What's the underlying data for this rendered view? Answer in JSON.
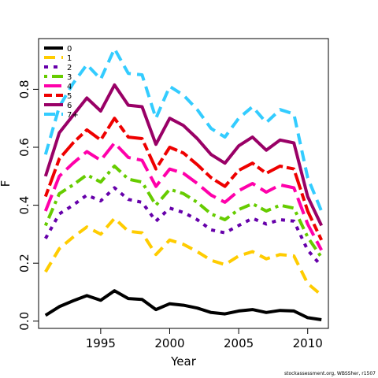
{
  "chart_data": {
    "type": "line",
    "title": "",
    "xlabel": "Year",
    "ylabel": "F",
    "xlim": [
      1990.5,
      2011.5
    ],
    "ylim": [
      -0.025,
      0.975
    ],
    "xticks": [
      1995,
      2000,
      2005,
      2010
    ],
    "yticks": [
      0.0,
      0.2,
      0.4,
      0.6,
      0.8
    ],
    "x": [
      1991,
      1992,
      1993,
      1994,
      1995,
      1996,
      1997,
      1998,
      1999,
      2000,
      2001,
      2002,
      2003,
      2004,
      2005,
      2006,
      2007,
      2008,
      2009,
      2010,
      2011
    ],
    "legend_position": "top-left",
    "series": [
      {
        "name": "0",
        "color": "#000000",
        "dash": "solid",
        "values": [
          0.02,
          0.05,
          0.07,
          0.088,
          0.072,
          0.105,
          0.078,
          0.075,
          0.04,
          0.06,
          0.055,
          0.045,
          0.03,
          0.025,
          0.035,
          0.04,
          0.03,
          0.037,
          0.035,
          0.012,
          0.005
        ]
      },
      {
        "name": "1",
        "color": "#FFCC00",
        "dash": "dashed",
        "values": [
          0.17,
          0.25,
          0.29,
          0.325,
          0.3,
          0.355,
          0.31,
          0.305,
          0.23,
          0.28,
          0.265,
          0.24,
          0.21,
          0.195,
          0.225,
          0.24,
          0.215,
          0.23,
          0.225,
          0.13,
          0.09
        ]
      },
      {
        "name": "2",
        "color": "#6600AA",
        "dash": "dotted",
        "values": [
          0.285,
          0.37,
          0.4,
          0.435,
          0.415,
          0.46,
          0.42,
          0.41,
          0.345,
          0.39,
          0.375,
          0.35,
          0.315,
          0.305,
          0.33,
          0.355,
          0.335,
          0.35,
          0.345,
          0.245,
          0.19
        ]
      },
      {
        "name": "3",
        "color": "#66CC00",
        "dash": "dotdash",
        "values": [
          0.33,
          0.44,
          0.47,
          0.505,
          0.48,
          0.535,
          0.49,
          0.48,
          0.4,
          0.455,
          0.44,
          0.41,
          0.37,
          0.35,
          0.385,
          0.405,
          0.38,
          0.4,
          0.39,
          0.29,
          0.22
        ]
      },
      {
        "name": "4",
        "color": "#FF00AA",
        "dash": "longdash",
        "values": [
          0.38,
          0.5,
          0.545,
          0.585,
          0.555,
          0.615,
          0.565,
          0.555,
          0.465,
          0.525,
          0.51,
          0.475,
          0.435,
          0.41,
          0.45,
          0.475,
          0.445,
          0.47,
          0.46,
          0.335,
          0.245
        ]
      },
      {
        "name": "5",
        "color": "#EE0000",
        "dash": "twodash",
        "values": [
          0.43,
          0.56,
          0.615,
          0.66,
          0.625,
          0.7,
          0.635,
          0.63,
          0.525,
          0.6,
          0.58,
          0.54,
          0.495,
          0.465,
          0.52,
          0.545,
          0.51,
          0.535,
          0.525,
          0.38,
          0.28
        ]
      },
      {
        "name": "6",
        "color": "#990066",
        "dash": "solid",
        "values": [
          0.5,
          0.65,
          0.71,
          0.77,
          0.725,
          0.815,
          0.745,
          0.74,
          0.61,
          0.7,
          0.675,
          0.63,
          0.575,
          0.545,
          0.605,
          0.635,
          0.59,
          0.625,
          0.615,
          0.43,
          0.33
        ]
      },
      {
        "name": "7+",
        "color": "#33CCFF",
        "dash": "dashed",
        "values": [
          0.575,
          0.74,
          0.82,
          0.885,
          0.835,
          0.94,
          0.855,
          0.85,
          0.7,
          0.81,
          0.78,
          0.73,
          0.665,
          0.635,
          0.7,
          0.74,
          0.685,
          0.73,
          0.715,
          0.495,
          0.38
        ]
      }
    ]
  },
  "credit": "stockassessment.org, WBSSher, r1507"
}
